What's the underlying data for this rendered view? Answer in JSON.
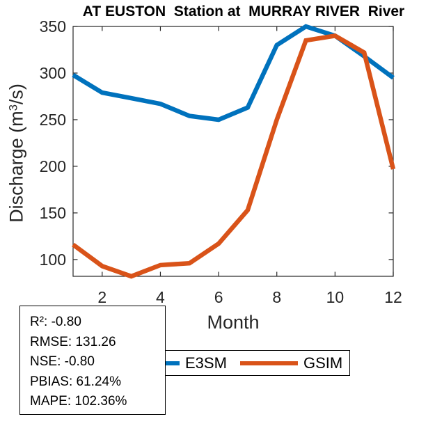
{
  "title": "AT EUSTON  Station at  MURRAY RIVER  River",
  "axes": {
    "xlabel": "Month",
    "ylabel_prefix": "Discharge (m",
    "ylabel_sup": "3",
    "ylabel_suffix": "/s)"
  },
  "chart_data": {
    "type": "line",
    "title": "AT EUSTON  Station at  MURRAY RIVER  River",
    "xlabel": "Month",
    "ylabel": "Discharge (m³/s)",
    "x": [
      1,
      2,
      3,
      4,
      5,
      6,
      7,
      8,
      9,
      10,
      11,
      12
    ],
    "series": [
      {
        "name": "E3SM",
        "color": "#0072BD",
        "values": [
          298,
          279,
          273,
          267,
          254,
          250,
          263,
          330,
          350,
          340,
          318,
          295
        ]
      },
      {
        "name": "GSIM",
        "color": "#D95319",
        "values": [
          116,
          93,
          82,
          94,
          96,
          117,
          153,
          250,
          335,
          340,
          322,
          197
        ]
      }
    ],
    "xlim": [
      1,
      12
    ],
    "ylim": [
      82,
      350
    ],
    "xticks": [
      2,
      4,
      6,
      8,
      10,
      12
    ],
    "yticks": [
      100,
      150,
      200,
      250,
      300,
      350
    ],
    "grid": false,
    "legend_position": "below-axis-horizontal",
    "axis_color": "#262626"
  },
  "legend": {
    "items": [
      {
        "label": "E3SM",
        "color": "#0072BD"
      },
      {
        "label": "GSIM",
        "color": "#D95319"
      }
    ]
  },
  "stats_box": {
    "lines": [
      "R²: -0.80",
      "RMSE: 131.26",
      "NSE: -0.80",
      "PBIAS: 61.24%",
      "MAPE: 102.36%"
    ]
  }
}
